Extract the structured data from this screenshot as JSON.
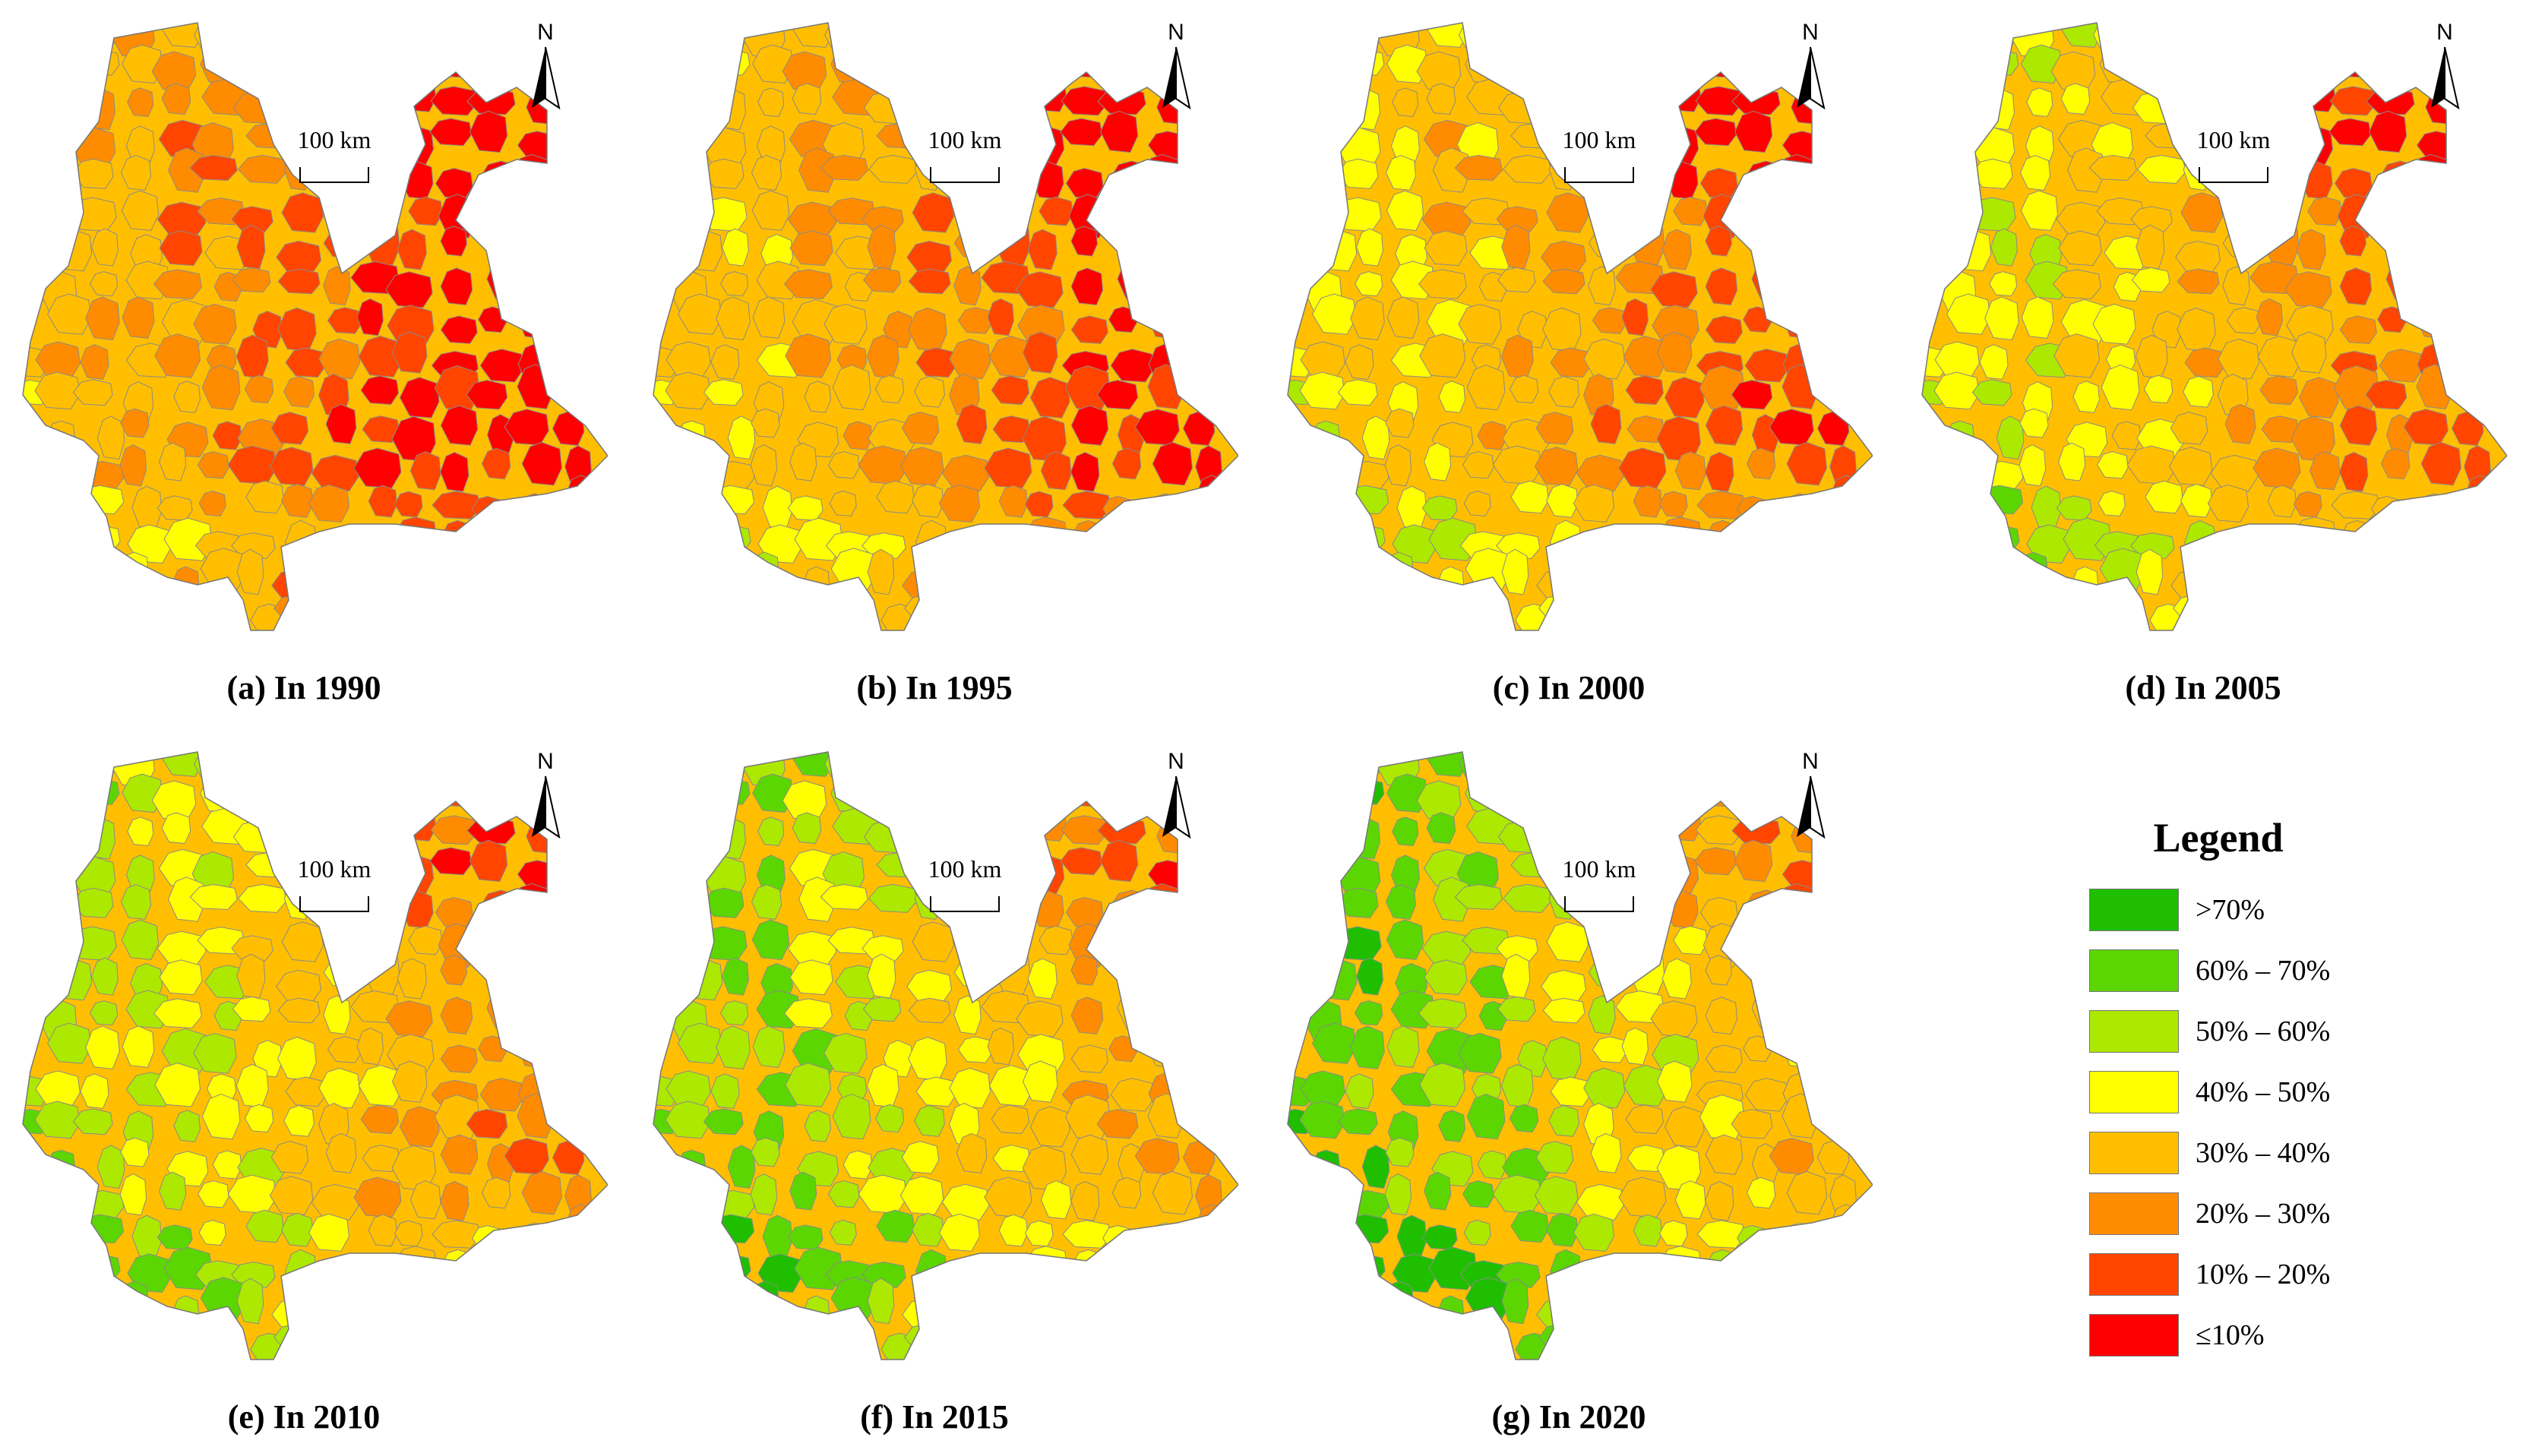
{
  "panels": [
    {
      "id": "a",
      "caption": "(a) In 1990",
      "scale_label": "100 km",
      "north_label": "N"
    },
    {
      "id": "b",
      "caption": "(b) In 1995",
      "scale_label": "100 km",
      "north_label": "N"
    },
    {
      "id": "c",
      "caption": "(c) In 2000",
      "scale_label": "100 km",
      "north_label": "N"
    },
    {
      "id": "d",
      "caption": "(d) In 2005",
      "scale_label": "100 km",
      "north_label": "N"
    },
    {
      "id": "e",
      "caption": "(e) In 2010",
      "scale_label": "100 km",
      "north_label": "N"
    },
    {
      "id": "f",
      "caption": "(f) In 2015",
      "scale_label": "100 km",
      "north_label": "N"
    },
    {
      "id": "g",
      "caption": "(g) In 2020",
      "scale_label": "100 km",
      "north_label": "N"
    }
  ],
  "legend": {
    "title": "Legend",
    "classes": [
      {
        "label": ">70%",
        "color": "#1FBF00"
      },
      {
        "label": "60% – 70%",
        "color": "#5CD600"
      },
      {
        "label": "50% – 60%",
        "color": "#ADE800"
      },
      {
        "label": "40% – 50%",
        "color": "#FFFF00"
      },
      {
        "label": "30% – 40%",
        "color": "#FFBF00"
      },
      {
        "label": "20% – 30%",
        "color": "#FF8C00"
      },
      {
        "label": "10% – 20%",
        "color": "#FF4500"
      },
      {
        "label": "≤10%",
        "color": "#FF0000"
      }
    ]
  }
}
